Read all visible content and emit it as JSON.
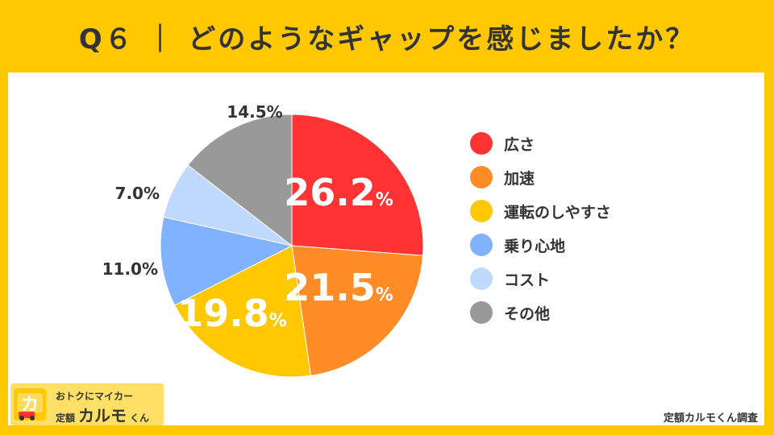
{
  "title": "Q６ ｜ どのようなギャップを感じましたか？",
  "chart_data": {
    "type": "pie",
    "title": "Q６ ｜ どのようなギャップを感じましたか？",
    "start": "12 o'clock",
    "direction": "clockwise",
    "slices": [
      {
        "label": "広さ",
        "value": 26.2,
        "value_text": "26.2",
        "color": "#ff3333"
      },
      {
        "label": "加速",
        "value": 21.5,
        "value_text": "21.5",
        "color": "#ff8c26"
      },
      {
        "label": "運転のしやすさ",
        "value": 19.8,
        "value_text": "19.8",
        "color": "#ffc800"
      },
      {
        "label": "乗り心地",
        "value": 11.0,
        "value_text": "11.0%",
        "color": "#80b3ff"
      },
      {
        "label": "コスト",
        "value": 7.0,
        "value_text": "7.0%",
        "color": "#bfd9ff"
      },
      {
        "label": "その他",
        "value": 14.5,
        "value_text": "14.5%",
        "color": "#999999"
      }
    ],
    "percent_sign": "%",
    "legend_placement": "right"
  },
  "brand": {
    "tagline": "おトクにマイカー",
    "prefix": "定額",
    "name": "カルモ",
    "suffix": "くん",
    "mark_icon": "car-logo-icon"
  },
  "source": "定額カルモくん調査"
}
